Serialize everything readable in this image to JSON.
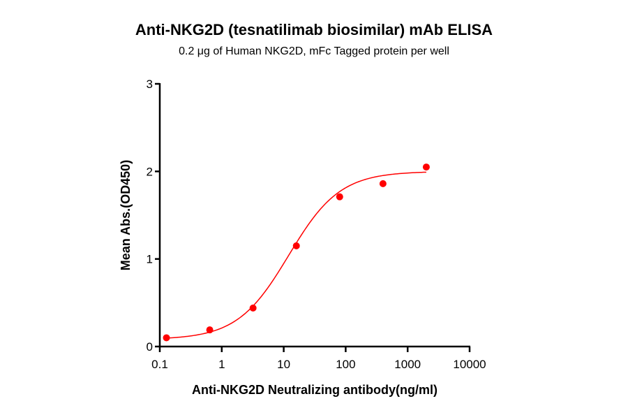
{
  "chart_data": {
    "type": "scatter",
    "title": "Anti-NKG2D (tesnatilimab biosimilar) mAb ELISA",
    "subtitle": "0.2 μg of Human NKG2D, mFc Tagged protein per well",
    "xlabel": "Anti-NKG2D Neutralizing antibody(ng/ml)",
    "ylabel": "Mean Abs.(OD450)",
    "x_scale": "log",
    "xlim": [
      0.1,
      10000
    ],
    "ylim": [
      0,
      3
    ],
    "x_ticks": [
      "0.1",
      "1",
      "10",
      "100",
      "1000",
      "10000"
    ],
    "y_ticks": [
      "0",
      "1",
      "2",
      "3"
    ],
    "grid": false,
    "color": "#ff0000",
    "fit": "sigmoidal curve",
    "series": [
      {
        "x": [
          0.128,
          0.64,
          3.2,
          16,
          80,
          400,
          2000
        ],
        "y": [
          0.1,
          0.19,
          0.44,
          1.15,
          1.71,
          1.86,
          2.05
        ]
      }
    ]
  }
}
